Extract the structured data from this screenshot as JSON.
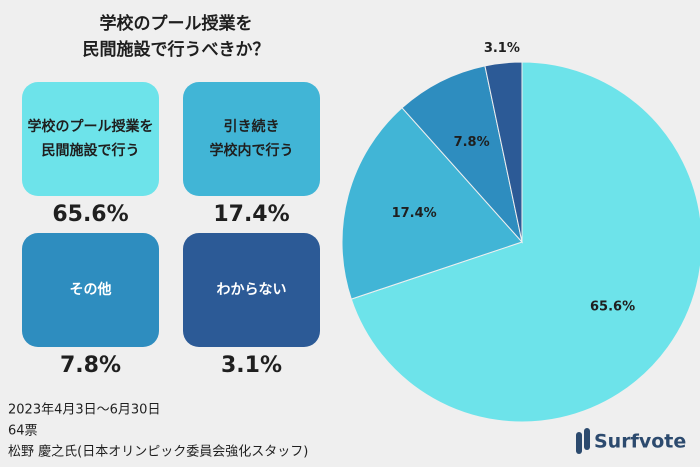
{
  "chart_data": {
    "type": "pie",
    "title": [
      "学校のプール授業を",
      "民間施設で行うべきか？"
    ],
    "categories": [
      [
        "学校のプール授業を",
        "民間施設で行う"
      ],
      [
        "引き続き",
        "学校内で行う"
      ],
      [
        "その他"
      ],
      [
        "わからない"
      ]
    ],
    "values": [
      65.6,
      17.4,
      7.8,
      3.1
    ],
    "value_labels": [
      "65.6%",
      "17.4%",
      "7.8%",
      "3.1%"
    ],
    "colors": [
      "#6de3ea",
      "#41b5d6",
      "#2e8dbf",
      "#2c5a96"
    ],
    "footer": [
      "2023年4月3日〜6月30日",
      "64票",
      "松野 慶之氏(日本オリンピック委員会強化スタッフ)"
    ],
    "logo": "Surfvote"
  }
}
